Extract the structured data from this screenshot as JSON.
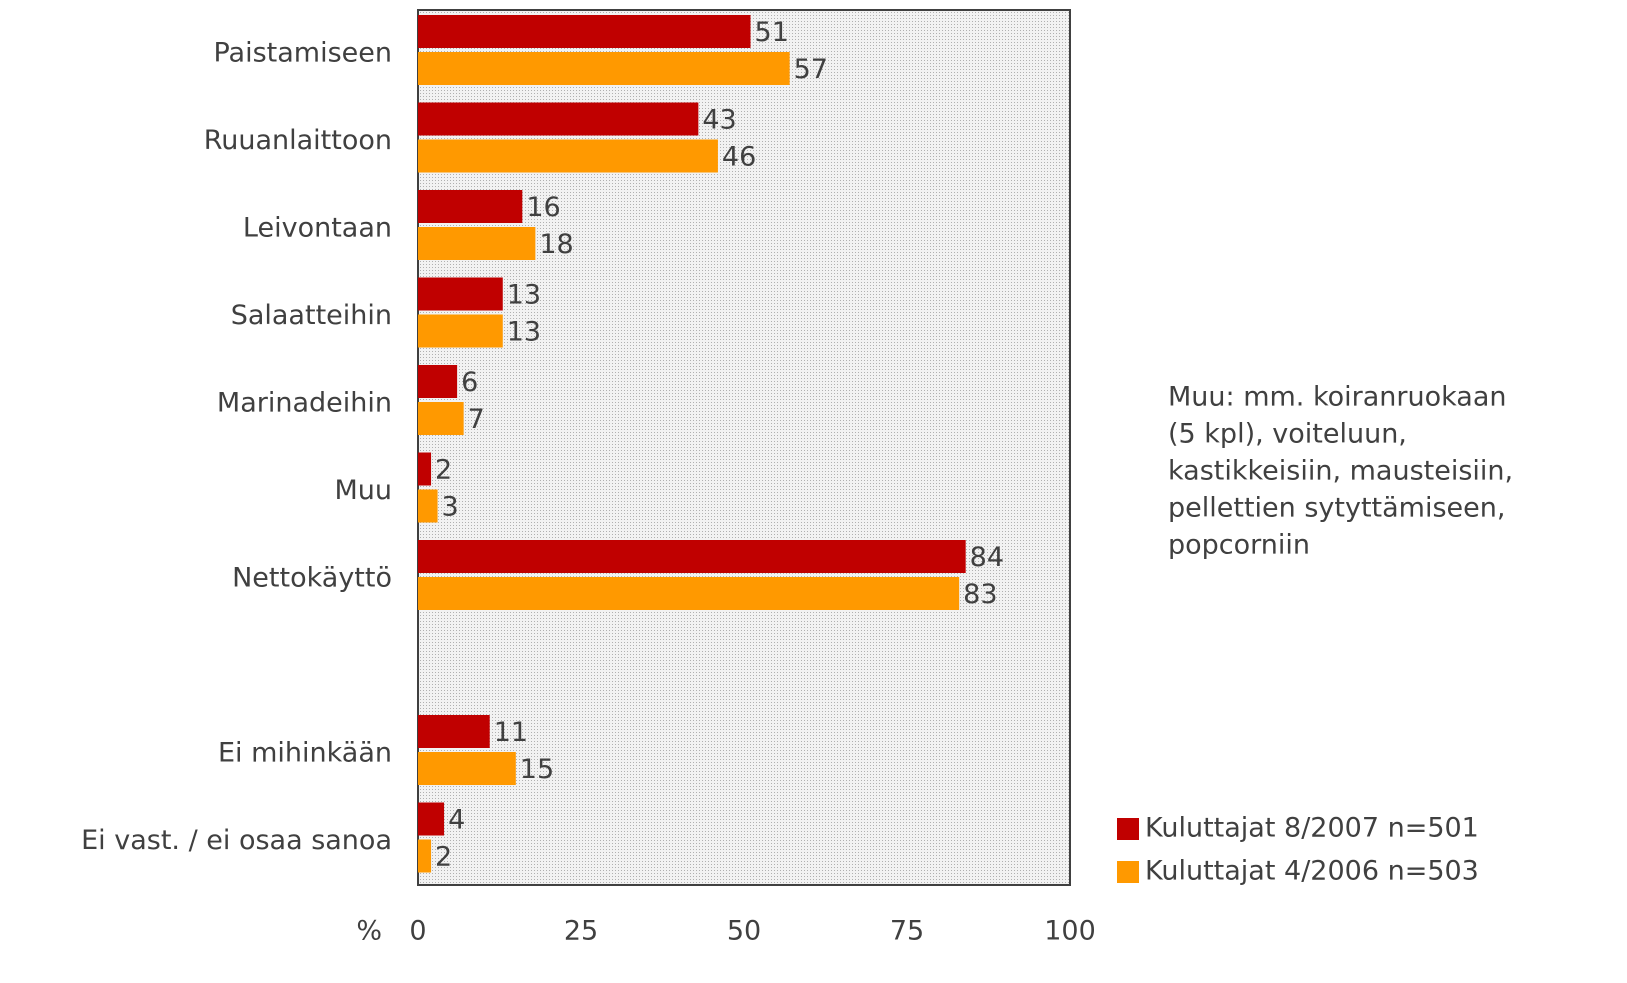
{
  "chart_data": {
    "type": "bar",
    "orientation": "horizontal",
    "categories": [
      "Paistamiseen",
      "Ruuanlaittoon",
      "Leivontaan",
      "Salaatteihin",
      "Marinadeihin",
      "Muu",
      "Nettokäyttö",
      null,
      "Ei mihinkään",
      "Ei vast. / ei osaa sanoa"
    ],
    "series": [
      {
        "name": "Kuluttajat 8/2007 n=501",
        "color": "#c00000",
        "values": [
          51,
          43,
          16,
          13,
          6,
          2,
          84,
          null,
          11,
          4
        ]
      },
      {
        "name": "Kuluttajat 4/2006 n=503",
        "color": "#ff9900",
        "values": [
          57,
          46,
          18,
          13,
          7,
          3,
          83,
          null,
          15,
          2
        ]
      }
    ],
    "x_label": "%",
    "xlim": [
      0,
      100
    ],
    "xticks": [
      0,
      25,
      50,
      75,
      100
    ],
    "annotation": [
      "Muu: mm. koiranruokaan",
      "(5 kpl), voiteluun,",
      "kastikkeisiin, mausteisiin,",
      "pellettien sytyttämiseen,",
      "popcorniin"
    ],
    "legend": "bottom-right"
  }
}
